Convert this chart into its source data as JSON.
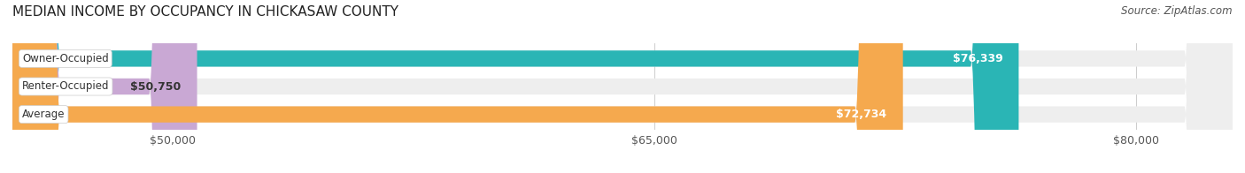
{
  "title": "MEDIAN INCOME BY OCCUPANCY IN CHICKASAW COUNTY",
  "source": "Source: ZipAtlas.com",
  "categories": [
    "Owner-Occupied",
    "Renter-Occupied",
    "Average"
  ],
  "values": [
    76339,
    50750,
    72734
  ],
  "bar_colors": [
    "#2ab5b5",
    "#c9a8d4",
    "#f5a94e"
  ],
  "bar_bg_color": "#eeeeee",
  "xmin": 45000,
  "xmax": 83000,
  "xticks": [
    50000,
    65000,
    80000
  ],
  "xtick_labels": [
    "$50,000",
    "$65,000",
    "$80,000"
  ],
  "title_fontsize": 11,
  "source_fontsize": 8.5,
  "tick_fontsize": 9,
  "bar_label_fontsize": 9,
  "category_fontsize": 8.5,
  "bar_height": 0.58,
  "figsize": [
    14.06,
    1.96
  ],
  "dpi": 100
}
